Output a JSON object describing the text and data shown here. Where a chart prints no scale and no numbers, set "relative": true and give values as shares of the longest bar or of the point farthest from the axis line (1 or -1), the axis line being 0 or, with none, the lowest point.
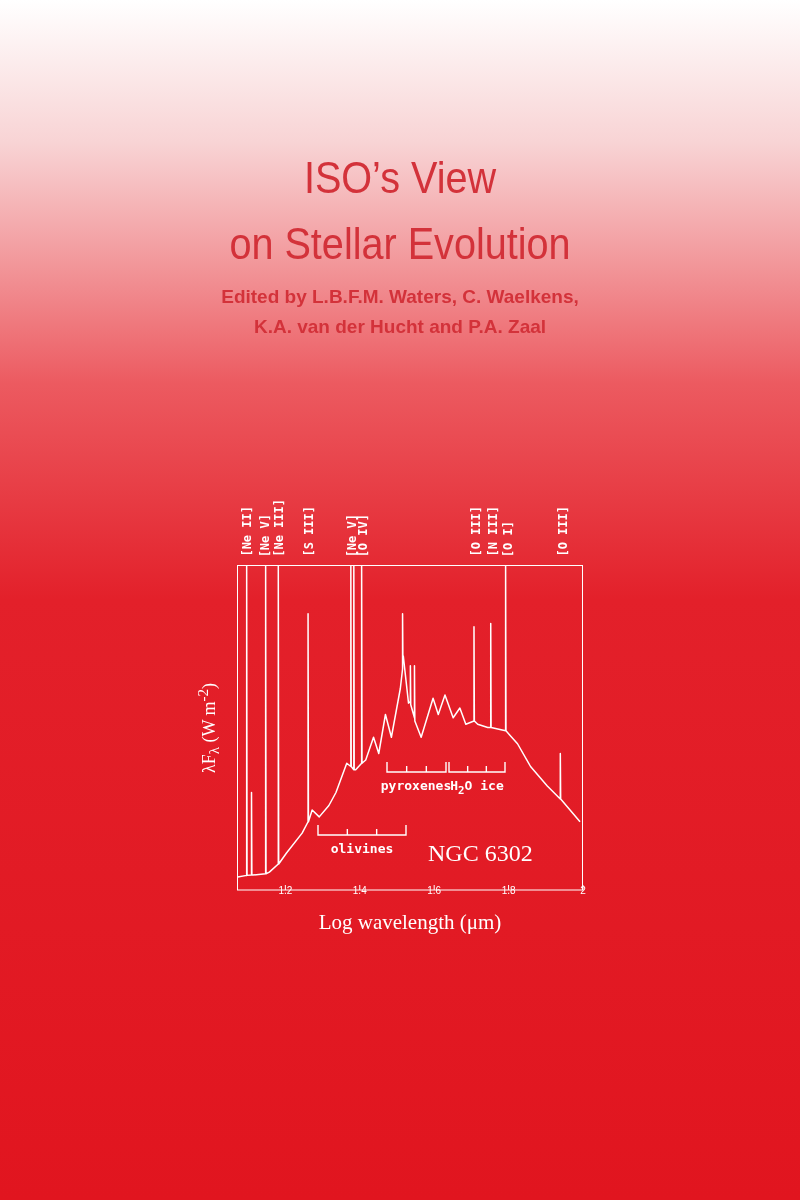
{
  "chart_data": {
    "type": "line",
    "title": "ISO’s View\non Stellar Evolution",
    "subtitle": "Edited by L.B.F.M. Waters, C. Waelkens,\nK.A. van der Hucht and P.A. Zaal",
    "xlabel": "Log wavelength (μm)",
    "ylabel": "λF$_{λ}$ (W m$^{-2}$)",
    "relative": true,
    "xlim": [
      1.07,
      2
    ],
    "xticks": [
      1.2,
      1.4,
      1.6,
      1.8,
      2
    ],
    "series": [
      {
        "color": "#ffffff",
        "x": [
          1.072,
          1.096,
          1.096,
          1.097,
          1.109,
          1.109,
          1.11,
          1.112,
          1.147,
          1.147,
          1.148,
          1.157,
          1.181,
          1.181,
          1.182,
          1.203,
          1.245,
          1.261,
          1.261,
          1.262,
          1.272,
          1.291,
          1.317,
          1.336,
          1.365,
          1.376,
          1.376,
          1.377,
          1.384,
          1.384,
          1.385,
          1.389,
          1.405,
          1.405,
          1.406,
          1.416,
          1.437,
          1.451,
          1.469,
          1.485,
          1.509,
          1.515,
          1.515,
          1.516,
          1.517,
          1.531,
          1.536,
          1.536,
          1.537,
          1.547,
          1.547,
          1.548,
          1.565,
          1.597,
          1.611,
          1.629,
          1.651,
          1.669,
          1.685,
          1.707,
          1.707,
          1.708,
          1.717,
          1.744,
          1.752,
          1.752,
          1.753,
          1.792,
          1.792,
          1.793,
          1.824,
          1.859,
          1.904,
          1.939,
          1.939,
          1.94,
          1.992
        ],
        "values": [
          0.04,
          0.045,
          1,
          0.045,
          0.046,
          0.3,
          0.046,
          0.046,
          0.05,
          1,
          0.05,
          0.055,
          0.08,
          1,
          0.08,
          0.114,
          0.175,
          0.21,
          0.85,
          0.21,
          0.246,
          0.225,
          0.26,
          0.3,
          0.39,
          0.38,
          1,
          0.38,
          0.37,
          1,
          0.37,
          0.37,
          0.39,
          1,
          0.39,
          0.4,
          0.47,
          0.42,
          0.54,
          0.47,
          0.62,
          0.68,
          0.85,
          0.7,
          0.72,
          0.575,
          0.58,
          0.69,
          0.57,
          0.53,
          0.69,
          0.52,
          0.47,
          0.59,
          0.54,
          0.6,
          0.53,
          0.56,
          0.51,
          0.52,
          0.81,
          0.52,
          0.51,
          0.5,
          0.5,
          0.82,
          0.5,
          0.49,
          1,
          0.49,
          0.45,
          0.38,
          0.32,
          0.28,
          0.42,
          0.28,
          0.21
        ]
      }
    ],
    "annotations": [
      "[Ne II]",
      "[Ne V]",
      "[Ne III]",
      "[S III]",
      "[Ne V]",
      "[O IV]",
      "[O III]",
      "[N III]",
      "[O I]",
      "[O III]",
      "olivines",
      "pyroxenes",
      "H$_{2}$O ice",
      "NGC 6302"
    ]
  }
}
